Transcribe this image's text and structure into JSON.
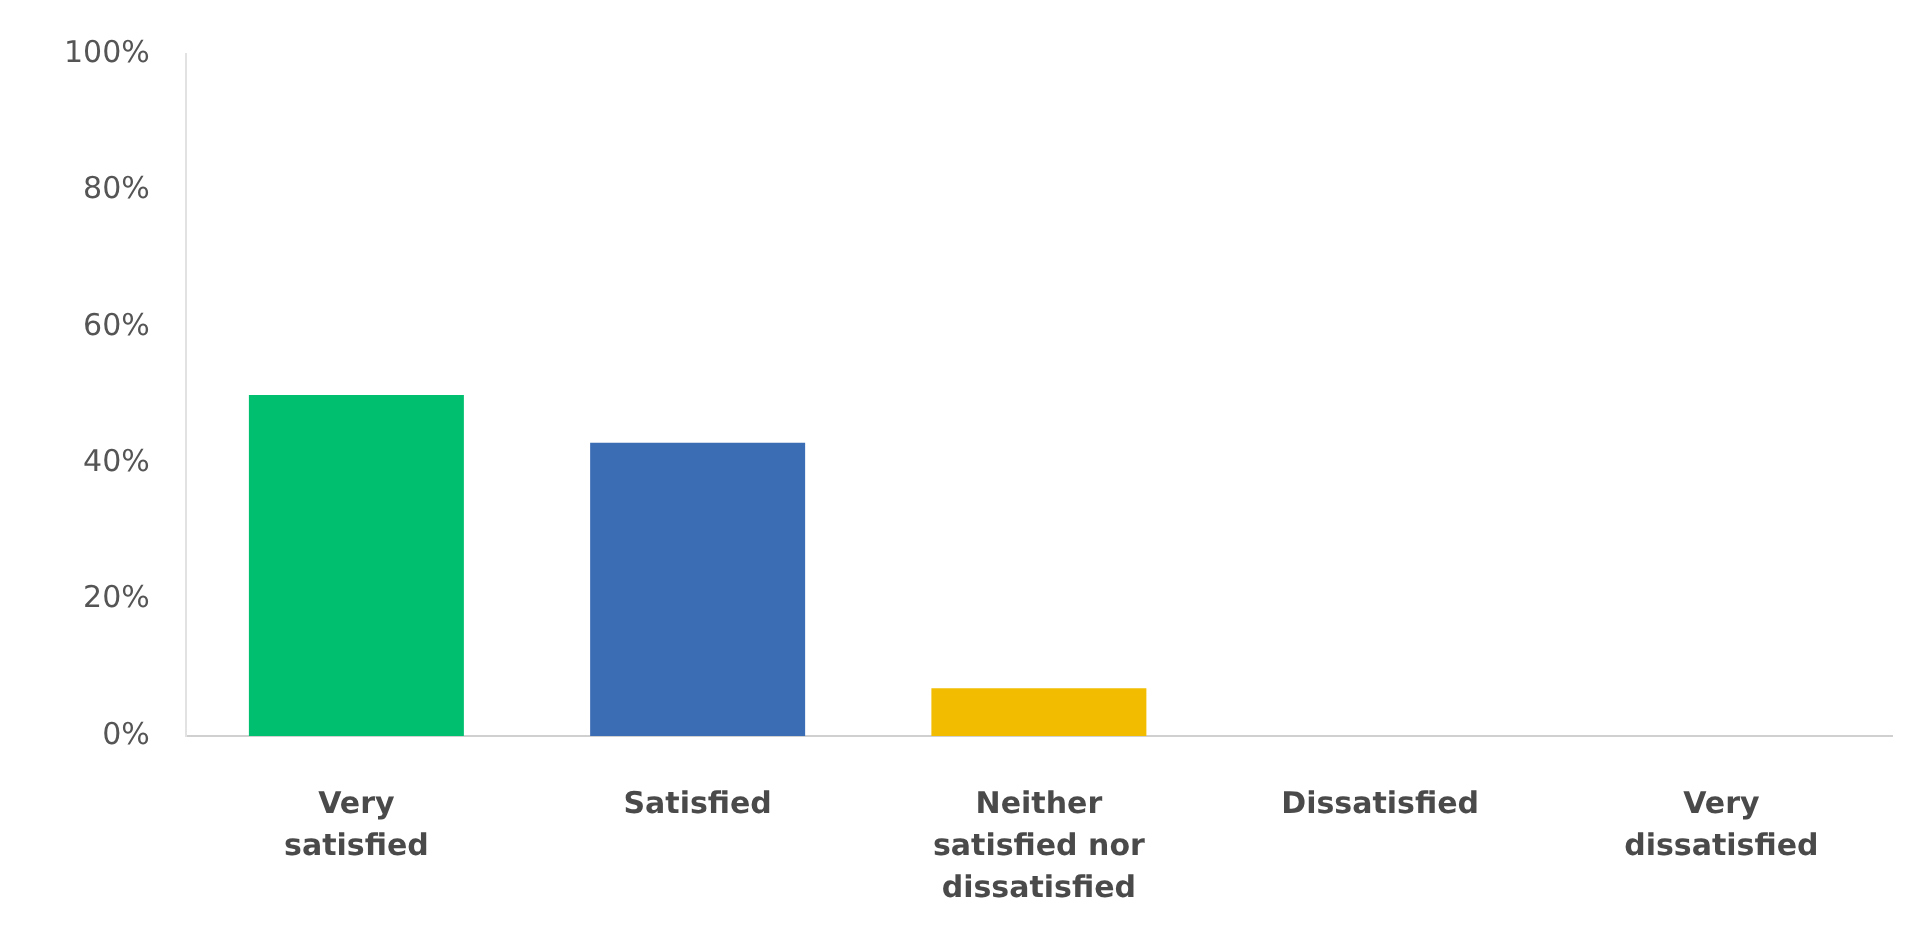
{
  "chart_data": {
    "type": "bar",
    "categories": [
      "Very satisfied",
      "Satisfied",
      "Neither satisfied nor dissatisfied",
      "Dissatisfied",
      "Very dissatisfied"
    ],
    "values": [
      50,
      43,
      7,
      0,
      0
    ],
    "colors": [
      "#00bf6f",
      "#3b6db4",
      "#f2bc00",
      "#00bf6f",
      "#00bf6f"
    ],
    "ylim": [
      0,
      100
    ],
    "yticks": [
      {
        "value": 0,
        "label": "0%"
      },
      {
        "value": 20,
        "label": "20%"
      },
      {
        "value": 40,
        "label": "40%"
      },
      {
        "value": 60,
        "label": "60%"
      },
      {
        "value": 80,
        "label": "80%"
      },
      {
        "value": 100,
        "label": "100%"
      }
    ]
  }
}
